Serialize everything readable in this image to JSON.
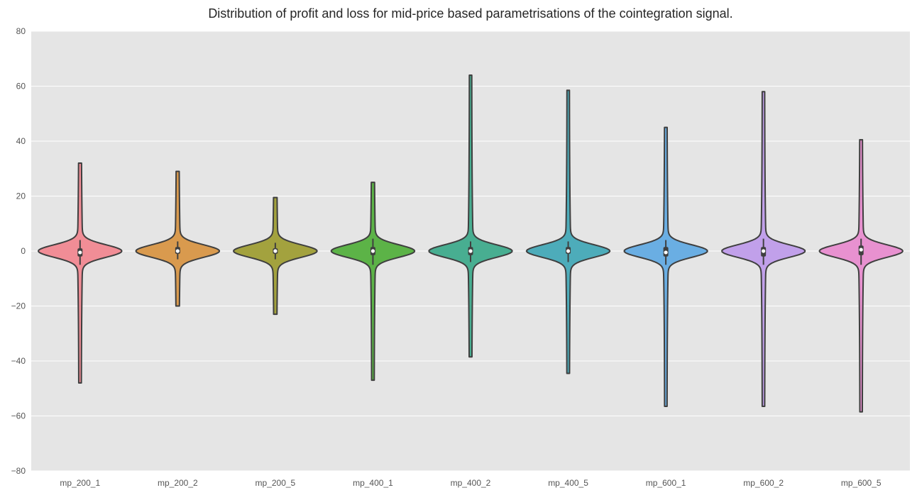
{
  "chart_data": {
    "type": "violin",
    "title": "Distribution of profit and loss for mid-price based parametrisations of the cointegration signal.",
    "xlabel": "",
    "ylabel": "",
    "ylim": [
      -80,
      80
    ],
    "yticks": [
      "80",
      "60",
      "40",
      "20",
      "0",
      "−20",
      "−40",
      "−60",
      "−80"
    ],
    "grid": true,
    "background": "#e5e5e5",
    "categories": [
      "mp_200_1",
      "mp_200_2",
      "mp_200_5",
      "mp_400_1",
      "mp_400_2",
      "mp_400_5",
      "mp_600_1",
      "mp_600_2",
      "mp_600_5"
    ],
    "series": [
      {
        "category": "mp_200_1",
        "color": "#f18d96",
        "min": -48,
        "q1": -2,
        "median": -0.5,
        "q3": 1,
        "max": 32,
        "whisker_low": -5,
        "whisker_high": 4
      },
      {
        "category": "mp_200_2",
        "color": "#d99a4e",
        "min": -20,
        "q1": -1,
        "median": 0,
        "q3": 1.5,
        "max": 29,
        "whisker_low": -3,
        "whisker_high": 3.5
      },
      {
        "category": "mp_200_5",
        "color": "#a3a23e",
        "min": -23,
        "q1": -1,
        "median": 0,
        "q3": 1,
        "max": 19.5,
        "whisker_low": -3,
        "whisker_high": 3
      },
      {
        "category": "mp_400_1",
        "color": "#5cb347",
        "min": -47,
        "q1": -1.5,
        "median": 0,
        "q3": 1.5,
        "max": 25,
        "whisker_low": -5,
        "whisker_high": 4.5
      },
      {
        "category": "mp_400_2",
        "color": "#48ae91",
        "min": -38.5,
        "q1": -1.5,
        "median": 0,
        "q3": 1.5,
        "max": 64,
        "whisker_low": -4,
        "whisker_high": 3.5
      },
      {
        "category": "mp_400_5",
        "color": "#4dacba",
        "min": -44.5,
        "q1": -1,
        "median": 0,
        "q3": 1.5,
        "max": 58.5,
        "whisker_low": -4,
        "whisker_high": 3.5
      },
      {
        "category": "mp_600_1",
        "color": "#6aaee3",
        "min": -56.5,
        "q1": -2,
        "median": -0.5,
        "q3": 1.5,
        "max": 45,
        "whisker_low": -5,
        "whisker_high": 4
      },
      {
        "category": "mp_600_2",
        "color": "#c1a0ea",
        "min": -56.5,
        "q1": -2,
        "median": 0,
        "q3": 1.5,
        "max": 58,
        "whisker_low": -5,
        "whisker_high": 4.5
      },
      {
        "category": "mp_600_5",
        "color": "#e891d0",
        "min": -58.5,
        "q1": -1.5,
        "median": 0.5,
        "q3": 2,
        "max": 40.5,
        "whisker_low": -5,
        "whisker_high": 4.5
      }
    ]
  }
}
